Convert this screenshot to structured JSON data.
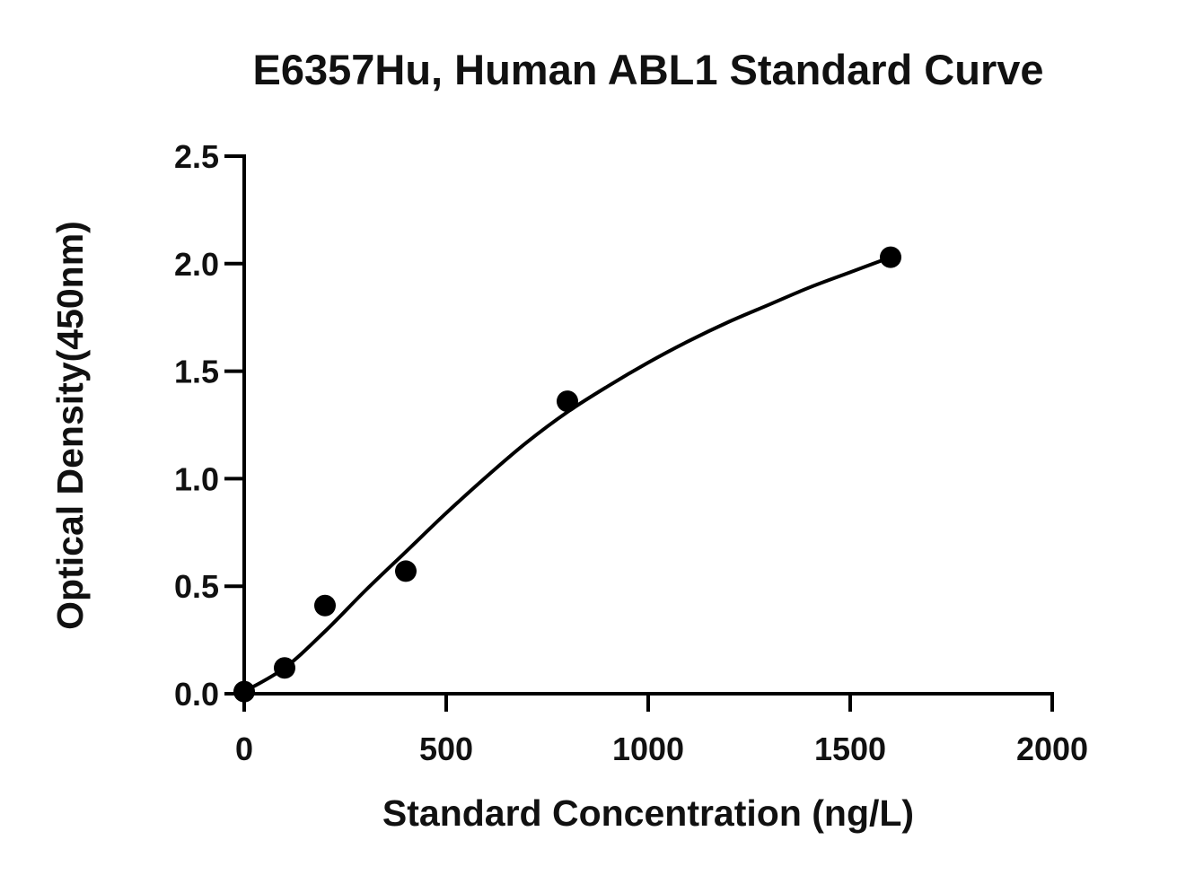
{
  "chart_data": {
    "type": "scatter",
    "title": "E6357Hu, Human ABL1 Standard Curve",
    "xlabel": "Standard Concentration (ng/L)",
    "ylabel": "Optical Density(450nm)",
    "xlim": [
      0,
      2000
    ],
    "ylim": [
      0,
      2.5
    ],
    "x_ticks": [
      "0",
      "500",
      "1000",
      "1500",
      "2000"
    ],
    "y_ticks": [
      "0.0",
      "0.5",
      "1.0",
      "1.5",
      "2.0",
      "2.5"
    ],
    "grid": false,
    "legend": "none",
    "series": [
      {
        "points": [
          {
            "x": 0,
            "y": 0.01
          },
          {
            "x": 100,
            "y": 0.12
          },
          {
            "x": 200,
            "y": 0.41
          },
          {
            "x": 400,
            "y": 0.57
          },
          {
            "x": 800,
            "y": 1.36
          },
          {
            "x": 1600,
            "y": 2.03
          }
        ],
        "fit_curve": {
          "model": "4PL",
          "x": [
            0,
            100,
            200,
            300,
            400,
            500,
            600,
            700,
            800,
            900,
            1000,
            1100,
            1200,
            1300,
            1400,
            1500,
            1600
          ],
          "y": [
            0.01,
            0.12,
            0.29,
            0.48,
            0.66,
            0.84,
            1.01,
            1.17,
            1.31,
            1.43,
            1.54,
            1.64,
            1.73,
            1.81,
            1.89,
            1.96,
            2.03
          ]
        }
      }
    ],
    "colors": {
      "marks": "#000000",
      "axes": "#000000",
      "text": "#111111"
    }
  }
}
